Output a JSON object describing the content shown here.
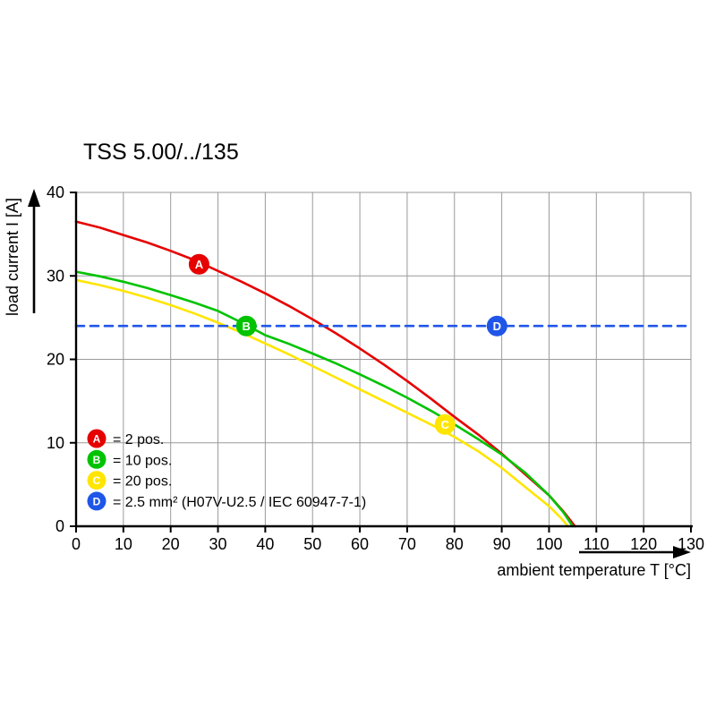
{
  "chart_data": {
    "type": "line",
    "title": "TSS 5.00/../135",
    "xlabel": "ambient temperature T [°C]",
    "ylabel": "load current I [A]",
    "xlim": [
      0,
      130
    ],
    "ylim": [
      0,
      40
    ],
    "x_ticks": [
      0,
      10,
      20,
      30,
      40,
      50,
      60,
      70,
      80,
      90,
      100,
      110,
      120,
      130
    ],
    "y_ticks": [
      0,
      10,
      20,
      30,
      40
    ],
    "grid": true,
    "legend_position": "lower-left",
    "colors": {
      "grid": "#9a9a9a",
      "axis": "#000000",
      "background": "#ffffff",
      "marker_letter": "#ffffff"
    },
    "series": [
      {
        "name": "A",
        "label": "= 2 pos.",
        "color": "#e60000",
        "style": "solid",
        "points": [
          [
            0,
            36.5
          ],
          [
            5,
            35.8
          ],
          [
            10,
            34.9
          ],
          [
            15,
            34.0
          ],
          [
            20,
            33.0
          ],
          [
            25,
            31.9
          ],
          [
            30,
            30.6
          ],
          [
            35,
            29.3
          ],
          [
            40,
            27.9
          ],
          [
            45,
            26.4
          ],
          [
            50,
            24.8
          ],
          [
            55,
            23.1
          ],
          [
            60,
            21.3
          ],
          [
            65,
            19.4
          ],
          [
            70,
            17.4
          ],
          [
            75,
            15.3
          ],
          [
            80,
            13.1
          ],
          [
            85,
            11.0
          ],
          [
            90,
            8.7
          ],
          [
            95,
            6.2
          ],
          [
            100,
            3.7
          ],
          [
            103,
            1.8
          ],
          [
            105.5,
            0
          ]
        ],
        "marker": {
          "x": 26,
          "y": 31.4
        }
      },
      {
        "name": "B",
        "label": "= 10 pos.",
        "color": "#00c300",
        "style": "solid",
        "points": [
          [
            0,
            30.5
          ],
          [
            5,
            29.95
          ],
          [
            10,
            29.3
          ],
          [
            15,
            28.55
          ],
          [
            20,
            27.7
          ],
          [
            25,
            26.8
          ],
          [
            30,
            25.8
          ],
          [
            35,
            24.4
          ],
          [
            40,
            22.9
          ],
          [
            45,
            21.85
          ],
          [
            50,
            20.7
          ],
          [
            55,
            19.5
          ],
          [
            60,
            18.2
          ],
          [
            65,
            16.85
          ],
          [
            70,
            15.4
          ],
          [
            75,
            13.85
          ],
          [
            80,
            12.2
          ],
          [
            85,
            10.45
          ],
          [
            90,
            8.6
          ],
          [
            95,
            6.4
          ],
          [
            100,
            3.7
          ],
          [
            103,
            1.7
          ],
          [
            105,
            0
          ]
        ],
        "marker": {
          "x": 36,
          "y": 24
        }
      },
      {
        "name": "C",
        "label": "= 20 pos.",
        "color": "#ffe500",
        "style": "solid",
        "points": [
          [
            0,
            29.5
          ],
          [
            5,
            28.9
          ],
          [
            10,
            28.2
          ],
          [
            15,
            27.4
          ],
          [
            20,
            26.5
          ],
          [
            25,
            25.5
          ],
          [
            30,
            24.4
          ],
          [
            35,
            23.2
          ],
          [
            40,
            21.9
          ],
          [
            45,
            20.6
          ],
          [
            50,
            19.2
          ],
          [
            55,
            17.8
          ],
          [
            60,
            16.4
          ],
          [
            65,
            15.0
          ],
          [
            70,
            13.6
          ],
          [
            75,
            12.2
          ],
          [
            80,
            10.7
          ],
          [
            85,
            9.0
          ],
          [
            90,
            7.0
          ],
          [
            95,
            4.7
          ],
          [
            100,
            2.4
          ],
          [
            102.5,
            1.0
          ],
          [
            104,
            0
          ]
        ],
        "marker": {
          "x": 78,
          "y": 12.2
        }
      },
      {
        "name": "D",
        "label": "= 2.5 mm² (H07V-U2.5 / IEC 60947-7-1)",
        "color": "#1f56e8",
        "style": "dashed",
        "points": [
          [
            0,
            24
          ],
          [
            130,
            24
          ]
        ],
        "marker": {
          "x": 89,
          "y": 24
        }
      }
    ]
  }
}
